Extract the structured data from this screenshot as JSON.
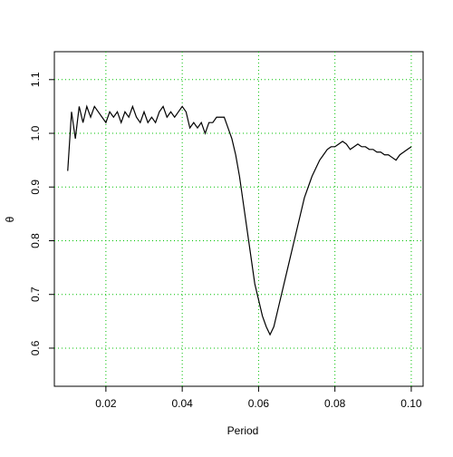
{
  "chart_data": {
    "type": "line",
    "xlabel": "Period",
    "ylabel": "θ",
    "x": [
      0.01,
      0.011,
      0.012,
      0.013,
      0.014,
      0.015,
      0.016,
      0.017,
      0.018,
      0.019,
      0.02,
      0.021,
      0.022,
      0.023,
      0.024,
      0.025,
      0.026,
      0.027,
      0.028,
      0.029,
      0.03,
      0.031,
      0.032,
      0.033,
      0.034,
      0.035,
      0.036,
      0.037,
      0.038,
      0.039,
      0.04,
      0.041,
      0.042,
      0.043,
      0.044,
      0.045,
      0.046,
      0.047,
      0.048,
      0.049,
      0.05,
      0.051,
      0.052,
      0.053,
      0.054,
      0.055,
      0.056,
      0.057,
      0.058,
      0.059,
      0.06,
      0.061,
      0.062,
      0.063,
      0.064,
      0.065,
      0.066,
      0.067,
      0.068,
      0.069,
      0.07,
      0.071,
      0.072,
      0.073,
      0.074,
      0.075,
      0.076,
      0.077,
      0.078,
      0.079,
      0.08,
      0.081,
      0.082,
      0.083,
      0.084,
      0.085,
      0.086,
      0.087,
      0.088,
      0.089,
      0.09,
      0.091,
      0.092,
      0.093,
      0.094,
      0.095,
      0.096,
      0.097,
      0.098,
      0.099,
      0.1
    ],
    "series": [
      {
        "name": "θ",
        "color": "#000000",
        "values": [
          0.93,
          1.04,
          0.99,
          1.05,
          1.02,
          1.05,
          1.03,
          1.05,
          1.04,
          1.03,
          1.02,
          1.04,
          1.03,
          1.04,
          1.02,
          1.04,
          1.03,
          1.05,
          1.03,
          1.02,
          1.04,
          1.02,
          1.03,
          1.02,
          1.04,
          1.05,
          1.03,
          1.04,
          1.03,
          1.04,
          1.05,
          1.04,
          1.01,
          1.02,
          1.01,
          1.02,
          1.0,
          1.02,
          1.02,
          1.03,
          1.03,
          1.03,
          1.01,
          0.99,
          0.96,
          0.92,
          0.87,
          0.82,
          0.77,
          0.72,
          0.69,
          0.66,
          0.64,
          0.625,
          0.64,
          0.67,
          0.7,
          0.73,
          0.76,
          0.79,
          0.82,
          0.85,
          0.88,
          0.9,
          0.92,
          0.935,
          0.95,
          0.96,
          0.97,
          0.975,
          0.975,
          0.98,
          0.985,
          0.98,
          0.97,
          0.975,
          0.98,
          0.975,
          0.975,
          0.97,
          0.97,
          0.965,
          0.965,
          0.96,
          0.96,
          0.955,
          0.95,
          0.96,
          0.965,
          0.97,
          0.975
        ]
      }
    ],
    "xlim": [
      0.0065,
      0.1031
    ],
    "ylim": [
      0.529,
      1.152
    ],
    "xticks": [
      0.02,
      0.04,
      0.06,
      0.08,
      {
        "value": 0.1,
        "label": "0.10"
      }
    ],
    "yticks": [
      0.6,
      0.7,
      0.8,
      0.9,
      {
        "value": 1.0,
        "label": "1.0"
      },
      1.1
    ],
    "grid": true,
    "grid_color": "#00c000"
  }
}
